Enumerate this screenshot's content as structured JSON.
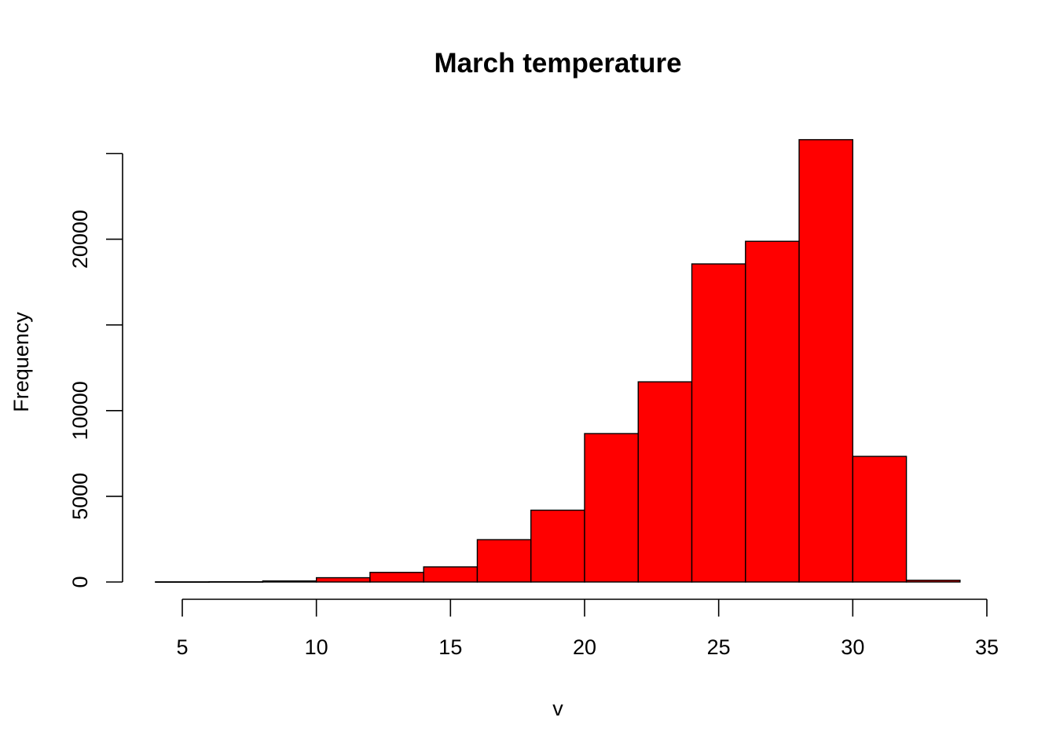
{
  "chart_data": {
    "type": "bar",
    "title": "March temperature",
    "xlabel": "v",
    "ylabel": "Frequency",
    "bar_color": "#ff0000",
    "bins": [
      {
        "from": 4,
        "to": 6,
        "count": 10
      },
      {
        "from": 6,
        "to": 8,
        "count": 15
      },
      {
        "from": 8,
        "to": 10,
        "count": 60
      },
      {
        "from": 10,
        "to": 12,
        "count": 250
      },
      {
        "from": 12,
        "to": 14,
        "count": 560
      },
      {
        "from": 14,
        "to": 16,
        "count": 880
      },
      {
        "from": 16,
        "to": 18,
        "count": 2470
      },
      {
        "from": 18,
        "to": 20,
        "count": 4190
      },
      {
        "from": 20,
        "to": 22,
        "count": 8660
      },
      {
        "from": 22,
        "to": 24,
        "count": 11680
      },
      {
        "from": 24,
        "to": 26,
        "count": 18560
      },
      {
        "from": 26,
        "to": 28,
        "count": 19880
      },
      {
        "from": 28,
        "to": 30,
        "count": 25810
      },
      {
        "from": 30,
        "to": 32,
        "count": 7330
      },
      {
        "from": 32,
        "to": 34,
        "count": 100
      }
    ],
    "x_ticks": [
      5,
      10,
      15,
      20,
      25,
      30,
      35
    ],
    "y_ticks": [
      0,
      5000,
      10000,
      15000,
      20000,
      25000
    ],
    "y_tick_labels": [
      "0",
      "5000",
      "10000",
      "",
      "20000",
      ""
    ],
    "xlim": [
      5,
      35
    ],
    "ylim": [
      0,
      25000
    ],
    "grid": false,
    "legend": "none"
  }
}
